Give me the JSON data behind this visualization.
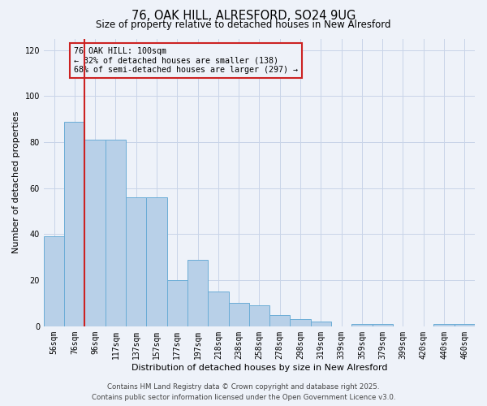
{
  "title1": "76, OAK HILL, ALRESFORD, SO24 9UG",
  "title2": "Size of property relative to detached houses in New Alresford",
  "xlabel": "Distribution of detached houses by size in New Alresford",
  "ylabel": "Number of detached properties",
  "categories": [
    "56sqm",
    "76sqm",
    "96sqm",
    "117sqm",
    "137sqm",
    "157sqm",
    "177sqm",
    "197sqm",
    "218sqm",
    "238sqm",
    "258sqm",
    "278sqm",
    "298sqm",
    "319sqm",
    "339sqm",
    "359sqm",
    "379sqm",
    "399sqm",
    "420sqm",
    "440sqm",
    "460sqm"
  ],
  "values": [
    39,
    89,
    81,
    81,
    56,
    56,
    20,
    29,
    15,
    10,
    9,
    5,
    3,
    2,
    0,
    1,
    1,
    0,
    0,
    1,
    1
  ],
  "bar_color": "#b8d0e8",
  "bar_edge_color": "#6aacd6",
  "ref_line_color": "#cc2222",
  "annotation_line1": "76 OAK HILL: 100sqm",
  "annotation_line2": "← 32% of detached houses are smaller (138)",
  "annotation_line3": "68% of semi-detached houses are larger (297) →",
  "ylim": [
    0,
    125
  ],
  "yticks": [
    0,
    20,
    40,
    60,
    80,
    100,
    120
  ],
  "background_color": "#eef2f9",
  "footer1": "Contains HM Land Registry data © Crown copyright and database right 2025.",
  "footer2": "Contains public sector information licensed under the Open Government Licence v3.0.",
  "grid_color": "#c8d4e8",
  "title1_fontsize": 10.5,
  "title2_fontsize": 8.5,
  "xlabel_fontsize": 8,
  "ylabel_fontsize": 8,
  "tick_fontsize": 7,
  "footer_fontsize": 6.2
}
